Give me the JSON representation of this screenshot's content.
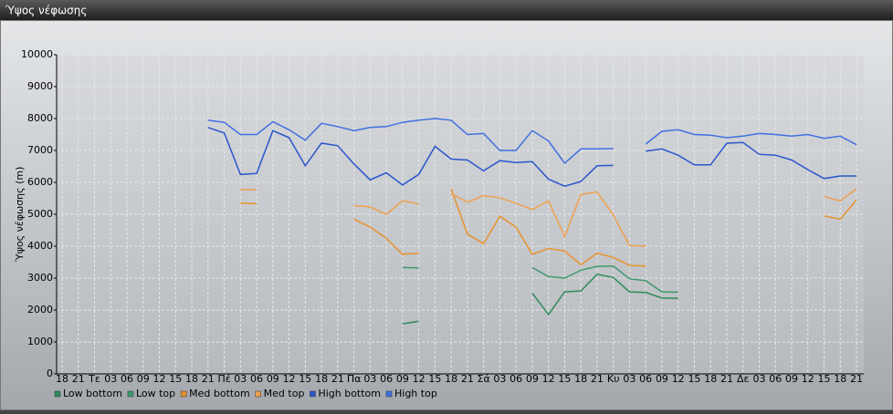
{
  "chart_data": {
    "type": "line",
    "title": "Ύψος νέφωσης",
    "y_label": "Ύψος νέφωσης (m)",
    "categories": [
      "18",
      "21",
      "Τε",
      "03",
      "06",
      "09",
      "12",
      "15",
      "18",
      "21",
      "Πέ",
      "03",
      "06",
      "09",
      "12",
      "15",
      "18",
      "21",
      "Πα",
      "03",
      "06",
      "09",
      "12",
      "15",
      "18",
      "21",
      "Σά",
      "03",
      "06",
      "09",
      "12",
      "15",
      "18",
      "21",
      "Κυ",
      "03",
      "06",
      "09",
      "12",
      "15",
      "18",
      "21",
      "Δε",
      "03",
      "06",
      "09",
      "12",
      "15",
      "18",
      "21"
    ],
    "ylim": [
      0,
      10000
    ],
    "yticks": [
      0,
      1000,
      2000,
      3000,
      4000,
      5000,
      6000,
      7000,
      8000,
      9000,
      10000
    ],
    "grid": true,
    "series": [
      {
        "name": "Low bottom",
        "color": "#2e8a5a",
        "values": [
          null,
          null,
          null,
          null,
          null,
          null,
          null,
          null,
          null,
          null,
          null,
          null,
          null,
          null,
          null,
          null,
          null,
          null,
          null,
          null,
          null,
          1570,
          1650,
          null,
          null,
          null,
          null,
          null,
          null,
          2530,
          1860,
          2570,
          2600,
          3120,
          3020,
          2570,
          2550,
          2380,
          2370,
          null,
          null,
          null,
          null,
          null,
          null,
          null,
          null,
          null,
          null,
          null
        ]
      },
      {
        "name": "Low top",
        "color": "#3c9a6c",
        "values": [
          null,
          null,
          null,
          null,
          null,
          null,
          null,
          null,
          null,
          null,
          null,
          null,
          null,
          null,
          null,
          null,
          null,
          null,
          null,
          null,
          null,
          3330,
          3320,
          null,
          null,
          null,
          null,
          null,
          null,
          3330,
          3050,
          3000,
          3250,
          3370,
          3380,
          2980,
          2920,
          2570,
          2560,
          null,
          null,
          null,
          null,
          null,
          null,
          null,
          null,
          null,
          null,
          null
        ]
      },
      {
        "name": "Med bottom",
        "color": "#e8922c",
        "values": [
          null,
          null,
          null,
          null,
          null,
          null,
          null,
          null,
          null,
          null,
          null,
          5350,
          5330,
          null,
          null,
          null,
          null,
          null,
          4850,
          4600,
          4250,
          3750,
          3780,
          null,
          5800,
          4380,
          4080,
          4940,
          4600,
          3750,
          3930,
          3850,
          3420,
          3780,
          3650,
          3400,
          3380,
          null,
          null,
          null,
          null,
          null,
          null,
          null,
          null,
          null,
          null,
          4950,
          4850,
          5450
        ]
      },
      {
        "name": "Med top",
        "color": "#f0a050",
        "values": [
          null,
          null,
          null,
          null,
          null,
          null,
          null,
          null,
          null,
          null,
          null,
          5780,
          5770,
          null,
          null,
          null,
          null,
          null,
          5270,
          5230,
          5000,
          5420,
          5330,
          null,
          5650,
          5380,
          5580,
          5520,
          5350,
          5150,
          5420,
          4300,
          5620,
          5700,
          4980,
          4020,
          4000,
          null,
          null,
          null,
          null,
          null,
          null,
          null,
          null,
          null,
          null,
          5550,
          5420,
          5800
        ]
      },
      {
        "name": "High bottom",
        "color": "#2a56cc",
        "values": [
          null,
          null,
          null,
          null,
          null,
          null,
          null,
          null,
          null,
          7720,
          7550,
          6250,
          6280,
          7620,
          7400,
          6520,
          7230,
          7150,
          6580,
          6080,
          6300,
          5920,
          6250,
          7130,
          6730,
          6700,
          6360,
          6680,
          6620,
          6650,
          6100,
          5880,
          6030,
          6520,
          6530,
          null,
          6980,
          7050,
          6850,
          6550,
          6550,
          7230,
          7250,
          6880,
          6850,
          6700,
          6400,
          6120,
          6200,
          6200
        ]
      },
      {
        "name": "High top",
        "color": "#4070e0",
        "values": [
          null,
          null,
          null,
          null,
          null,
          null,
          null,
          null,
          null,
          7950,
          7880,
          7500,
          7500,
          7900,
          7650,
          7320,
          7850,
          7750,
          7620,
          7720,
          7750,
          7880,
          7950,
          8000,
          7950,
          7500,
          7530,
          7000,
          7000,
          7620,
          7300,
          6600,
          7050,
          7050,
          7060,
          null,
          7200,
          7600,
          7650,
          7500,
          7480,
          7400,
          7450,
          7530,
          7500,
          7450,
          7500,
          7380,
          7450,
          7180
        ]
      }
    ]
  }
}
